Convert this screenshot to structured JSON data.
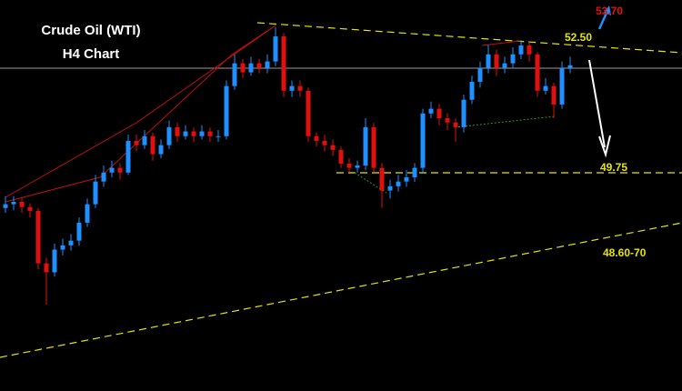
{
  "chart_data": {
    "type": "candlestick",
    "title": "Crude Oil (WTI)",
    "subtitle": "H4 Chart",
    "ylim": [
      45.13,
      53.4
    ],
    "up_color": "#1e90ff",
    "down_color": "#e01010",
    "open": [
      49.0,
      49.08,
      49.13,
      49.02,
      48.94,
      47.83,
      47.64,
      48.12,
      48.21,
      48.31,
      48.69,
      49.08,
      49.56,
      49.75,
      49.85,
      49.75,
      50.42,
      50.33,
      50.52,
      50.14,
      50.33,
      50.71,
      50.52,
      50.62,
      50.52,
      50.62,
      50.52,
      50.52,
      51.58,
      52.06,
      51.87,
      52.06,
      51.96,
      52.1,
      52.63,
      51.48,
      51.58,
      51.48,
      50.52,
      50.42,
      50.33,
      50.23,
      49.94,
      49.85,
      49.9,
      50.71,
      49.85,
      49.37,
      49.46,
      49.56,
      49.65,
      49.85,
      51.0,
      51.1,
      50.9,
      50.81,
      50.71,
      51.29,
      51.67,
      51.96,
      52.25,
      51.96,
      52.06,
      52.25,
      52.44,
      52.25,
      51.48,
      51.58,
      51.19,
      51.96
    ],
    "high": [
      49.25,
      49.25,
      49.22,
      49.1,
      49.0,
      47.95,
      48.25,
      48.35,
      48.45,
      48.8,
      49.2,
      49.7,
      49.9,
      50.0,
      49.95,
      50.55,
      50.55,
      50.65,
      50.6,
      50.45,
      50.85,
      50.8,
      50.75,
      50.7,
      50.75,
      50.7,
      50.65,
      51.7,
      52.25,
      52.15,
      52.2,
      52.15,
      52.25,
      52.82,
      52.7,
      51.7,
      51.7,
      51.55,
      50.6,
      50.55,
      50.45,
      50.3,
      50.05,
      50.0,
      50.9,
      50.8,
      49.95,
      49.6,
      49.7,
      49.8,
      49.95,
      51.1,
      51.25,
      51.2,
      51.0,
      50.9,
      51.4,
      51.8,
      52.1,
      52.45,
      52.35,
      52.2,
      52.4,
      52.55,
      52.5,
      52.3,
      51.75,
      51.65,
      52.1,
      52.2
    ],
    "low": [
      48.9,
      48.95,
      48.9,
      48.8,
      47.7,
      46.96,
      47.55,
      48.0,
      48.1,
      48.2,
      48.6,
      49.0,
      49.45,
      49.65,
      49.6,
      49.7,
      50.2,
      50.25,
      50.0,
      50.05,
      50.25,
      50.4,
      50.45,
      50.4,
      50.45,
      50.4,
      50.4,
      50.45,
      51.5,
      51.75,
      51.8,
      51.85,
      51.85,
      52.0,
      51.35,
      51.35,
      51.35,
      50.4,
      50.3,
      50.2,
      50.1,
      49.85,
      49.75,
      49.75,
      49.8,
      49.75,
      49.0,
      49.2,
      49.35,
      49.45,
      49.55,
      49.75,
      50.9,
      50.75,
      50.65,
      50.4,
      50.6,
      51.2,
      51.55,
      51.85,
      51.8,
      51.85,
      51.95,
      52.15,
      52.1,
      51.35,
      51.4,
      50.9,
      51.1,
      51.85
    ],
    "close": [
      49.08,
      49.13,
      49.02,
      48.94,
      47.83,
      47.64,
      48.12,
      48.21,
      48.31,
      48.69,
      49.08,
      49.56,
      49.75,
      49.85,
      49.75,
      50.42,
      50.33,
      50.52,
      50.14,
      50.33,
      50.71,
      50.52,
      50.62,
      50.52,
      50.62,
      50.52,
      50.52,
      51.58,
      52.06,
      51.87,
      52.06,
      51.96,
      52.1,
      52.63,
      51.48,
      51.58,
      51.48,
      50.52,
      50.42,
      50.33,
      50.23,
      49.94,
      49.85,
      49.9,
      50.71,
      49.85,
      49.37,
      49.46,
      49.56,
      49.65,
      49.85,
      51.0,
      51.1,
      50.9,
      50.81,
      50.71,
      51.29,
      51.67,
      51.96,
      52.25,
      51.96,
      52.06,
      52.25,
      52.44,
      52.25,
      51.48,
      51.58,
      51.19,
      51.96,
      52.02
    ],
    "annotations": [
      "53.70",
      "52.50",
      "49.75",
      "48.60-70"
    ]
  }
}
